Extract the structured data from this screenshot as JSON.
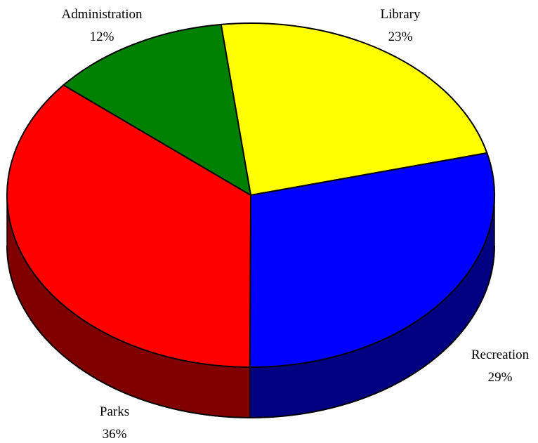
{
  "chart_data": {
    "type": "pie",
    "three_d": true,
    "title": "",
    "slices": [
      {
        "label": "Library",
        "percent_label": "23%",
        "value": 23,
        "color": "#ffff00",
        "side_color": "#808000"
      },
      {
        "label": "Recreation",
        "percent_label": "29%",
        "value": 29,
        "color": "#0000ff",
        "side_color": "#000080"
      },
      {
        "label": "Parks",
        "percent_label": "36%",
        "value": 36,
        "color": "#ff0000",
        "side_color": "#800000"
      },
      {
        "label": "Administration",
        "percent_label": "12%",
        "value": 12,
        "color": "#008000",
        "side_color": "#004000"
      }
    ],
    "legend": "none",
    "labels_outside": true
  }
}
